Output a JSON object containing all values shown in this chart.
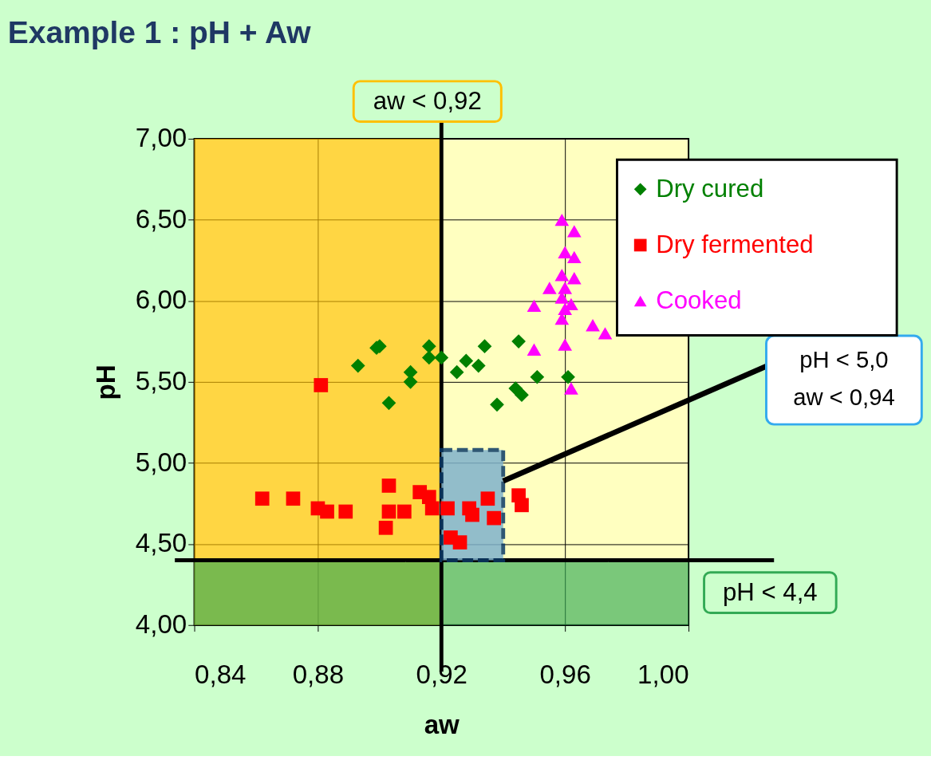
{
  "chart_data": {
    "type": "scatter",
    "title": "Example 1 : pH + Aw",
    "xlabel": "aw",
    "ylabel": "pH",
    "xlim": [
      0.84,
      1.0
    ],
    "ylim": [
      4.0,
      7.0
    ],
    "xticks": [
      {
        "value": 0.84,
        "label": "0,84"
      },
      {
        "value": 0.88,
        "label": "0,88"
      },
      {
        "value": 0.92,
        "label": "0,92"
      },
      {
        "value": 0.96,
        "label": "0,96"
      },
      {
        "value": 1.0,
        "label": "1,00"
      }
    ],
    "yticks": [
      {
        "value": 4.0,
        "label": "4,00"
      },
      {
        "value": 4.5,
        "label": "4,50"
      },
      {
        "value": 5.0,
        "label": "5,00"
      },
      {
        "value": 5.5,
        "label": "5,50"
      },
      {
        "value": 6.0,
        "label": "6,00"
      },
      {
        "value": 6.5,
        "label": "6,50"
      },
      {
        "value": 7.0,
        "label": "7,00"
      }
    ],
    "grid": true,
    "legend": "top right",
    "series": [
      {
        "name": "Dry cured",
        "marker": "diamond",
        "color": "#008000",
        "x": [
          0.893,
          0.899,
          0.9,
          0.91,
          0.91,
          0.903,
          0.916,
          0.916,
          0.92,
          0.925,
          0.928,
          0.932,
          0.934,
          0.945,
          0.951,
          0.944,
          0.946,
          0.938,
          0.961
        ],
        "values": [
          5.6,
          5.71,
          5.72,
          5.56,
          5.5,
          5.37,
          5.72,
          5.65,
          5.65,
          5.56,
          5.63,
          5.6,
          5.72,
          5.75,
          5.53,
          5.46,
          5.42,
          5.36,
          5.53
        ]
      },
      {
        "name": "Dry fermented",
        "marker": "square",
        "color": "#ff0000",
        "x": [
          0.881,
          0.862,
          0.872,
          0.88,
          0.883,
          0.889,
          0.903,
          0.903,
          0.908,
          0.902,
          0.913,
          0.916,
          0.917,
          0.922,
          0.929,
          0.93,
          0.935,
          0.937,
          0.923,
          0.926,
          0.945,
          0.946
        ],
        "values": [
          5.48,
          4.78,
          4.78,
          4.72,
          4.7,
          4.7,
          4.86,
          4.7,
          4.7,
          4.6,
          4.82,
          4.79,
          4.72,
          4.72,
          4.72,
          4.68,
          4.78,
          4.66,
          4.54,
          4.51,
          4.8,
          4.74
        ]
      },
      {
        "name": "Cooked",
        "marker": "triangle",
        "color": "#ff00ff",
        "x": [
          0.959,
          0.963,
          0.96,
          0.963,
          0.959,
          0.963,
          0.955,
          0.96,
          0.959,
          0.962,
          0.95,
          0.96,
          0.959,
          0.969,
          0.973,
          0.95,
          0.96,
          0.962
        ],
        "values": [
          6.5,
          6.43,
          6.3,
          6.27,
          6.16,
          6.14,
          6.08,
          6.08,
          6.02,
          5.98,
          5.97,
          5.95,
          5.89,
          5.85,
          5.8,
          5.7,
          5.73,
          5.46
        ]
      },
      {
        "type": "area",
        "color": "#7fb2cc",
        "x": [
          0.92,
          0.94
        ],
        "values": [
          5.08,
          5.08
        ]
      }
    ],
    "bands": [
      {
        "axis": "x",
        "from": 0.84,
        "to": 0.92,
        "label": "aw < 0,92",
        "color": "#ffc000"
      },
      {
        "axis": "y",
        "from": 4.0,
        "to": 4.4,
        "label": "pH < 4,4",
        "color": "#33aa55"
      }
    ],
    "ref_lines": [
      {
        "axis": "x",
        "value": 0.92
      },
      {
        "axis": "y",
        "value": 4.4
      }
    ],
    "annotations": [
      "pH < 5,0\naw < 0,94"
    ]
  }
}
